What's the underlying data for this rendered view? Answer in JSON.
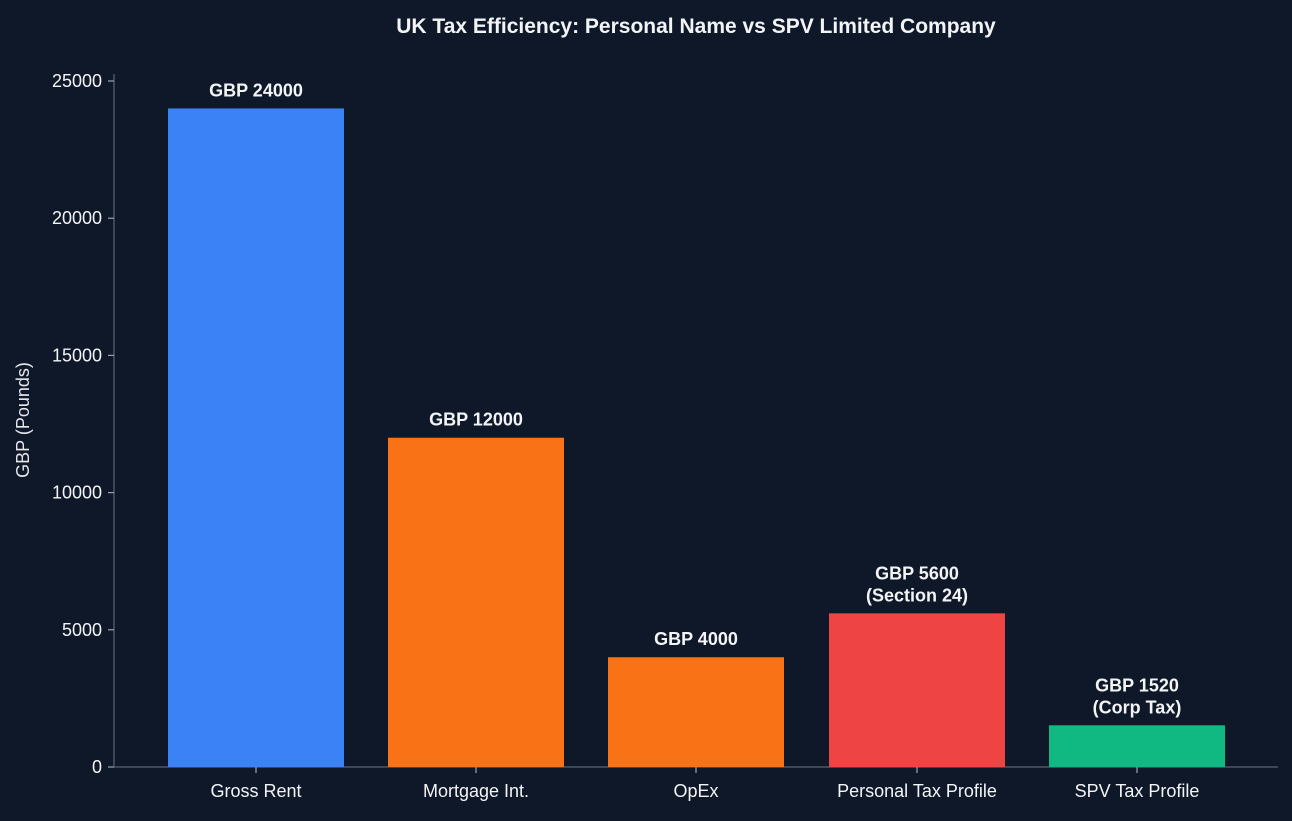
{
  "chart_data": {
    "type": "bar",
    "title": "UK Tax Efficiency: Personal Name vs SPV Limited Company",
    "xlabel": "",
    "ylabel": "GBP (Pounds)",
    "ylim": [
      0,
      25000
    ],
    "yticks": [
      0,
      5000,
      10000,
      15000,
      20000,
      25000
    ],
    "grid": false,
    "legend": "none",
    "categories": [
      "Gross Rent",
      "Mortgage Int.",
      "OpEx",
      "Personal Tax Profile",
      "SPV Tax Profile"
    ],
    "values": [
      24000,
      12000,
      4000,
      5600,
      1520
    ],
    "data_labels": [
      [
        "GBP 24000"
      ],
      [
        "GBP 12000"
      ],
      [
        "GBP 4000"
      ],
      [
        "GBP 5600",
        "(Section 24)"
      ],
      [
        "GBP 1520",
        "(Corp Tax)"
      ]
    ],
    "bar_colors": [
      "#3b82f6",
      "#f97316",
      "#f97316",
      "#ef4444",
      "#10b981"
    ]
  },
  "theme": {
    "background": "#0f1829",
    "text": "#f3f4f6",
    "axis": "#4b5563"
  }
}
